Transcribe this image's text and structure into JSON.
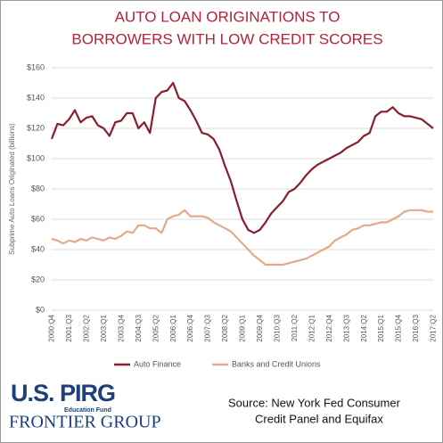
{
  "chart_data": {
    "type": "line",
    "title": [
      "AUTO LOAN ORIGINATIONS TO",
      "BORROWERS WITH LOW CREDIT SCORES"
    ],
    "y_label": "Subprime Auto Loans Originated (billions)",
    "categories": [
      "2000:Q4",
      null,
      null,
      "2001:Q3",
      null,
      null,
      "2002:Q2",
      null,
      null,
      "2003:Q1",
      null,
      null,
      "2003:Q4",
      null,
      null,
      "2004:Q3",
      null,
      null,
      "2005:Q2",
      null,
      null,
      "2006:Q1",
      null,
      null,
      "2006:Q4",
      null,
      null,
      "2007:Q3",
      null,
      null,
      "2008:Q2",
      null,
      null,
      "2009:Q1",
      null,
      null,
      "2009:Q4",
      null,
      null,
      "2010:Q3",
      null,
      null,
      "2011:Q2",
      null,
      null,
      "2012:Q1",
      null,
      null,
      "2012:Q4",
      null,
      null,
      "2013:Q3",
      null,
      null,
      "2014:Q2",
      null,
      null,
      "2015:Q1",
      null,
      null,
      "2015:Q4",
      null,
      null,
      "2016:Q3",
      null,
      null,
      "2017:Q2"
    ],
    "series": [
      {
        "name": "Auto Finance",
        "color": "#8b1c2e",
        "values": [
          113,
          123,
          122,
          126,
          132,
          124,
          127,
          128,
          122,
          120,
          115,
          124,
          125,
          130,
          130,
          120,
          124,
          117,
          140,
          144,
          145,
          150,
          140,
          138,
          132,
          125,
          117,
          116,
          113,
          106,
          95,
          85,
          72,
          60,
          53,
          51,
          53,
          58,
          64,
          68,
          72,
          78,
          80,
          84,
          89,
          93,
          96,
          98,
          100,
          102,
          104,
          107,
          109,
          111,
          115,
          117,
          128,
          131,
          131,
          134,
          130,
          128,
          128,
          127,
          126,
          123,
          120
        ]
      },
      {
        "name": "Banks and Credit Unions",
        "color": "#e3a98b",
        "values": [
          47,
          46,
          44,
          46,
          45,
          47,
          46,
          48,
          47,
          46,
          48,
          47,
          49,
          52,
          51,
          56,
          56,
          54,
          54,
          51,
          60,
          62,
          63,
          66,
          62,
          62,
          62,
          61,
          58,
          56,
          54,
          52,
          48,
          44,
          40,
          36,
          33,
          30,
          30,
          30,
          30,
          31,
          32,
          33,
          34,
          36,
          38,
          40,
          42,
          46,
          48,
          50,
          53,
          54,
          56,
          56,
          57,
          58,
          58,
          60,
          62,
          65,
          66,
          66,
          66,
          65,
          65
        ]
      }
    ],
    "ylim": [
      0,
      160
    ],
    "yticks": [
      {
        "value": 0,
        "label": "$0"
      },
      {
        "value": 20,
        "label": "$20"
      },
      {
        "value": 40,
        "label": "$40"
      },
      {
        "value": 60,
        "label": "$60"
      },
      {
        "value": 80,
        "label": "$80"
      },
      {
        "value": 100,
        "label": "$100"
      },
      {
        "value": 120,
        "label": "$120"
      },
      {
        "value": 140,
        "label": "$140"
      },
      {
        "value": 160,
        "label": "$160"
      }
    ],
    "grid": true,
    "source": [
      "Source:  New York Fed Consumer",
      "Credit Panel and Equifax"
    ]
  },
  "branding": {
    "org": "U.S. PIRG",
    "org_sub": "Education Fund",
    "partner": "FRONTIER GROUP"
  }
}
